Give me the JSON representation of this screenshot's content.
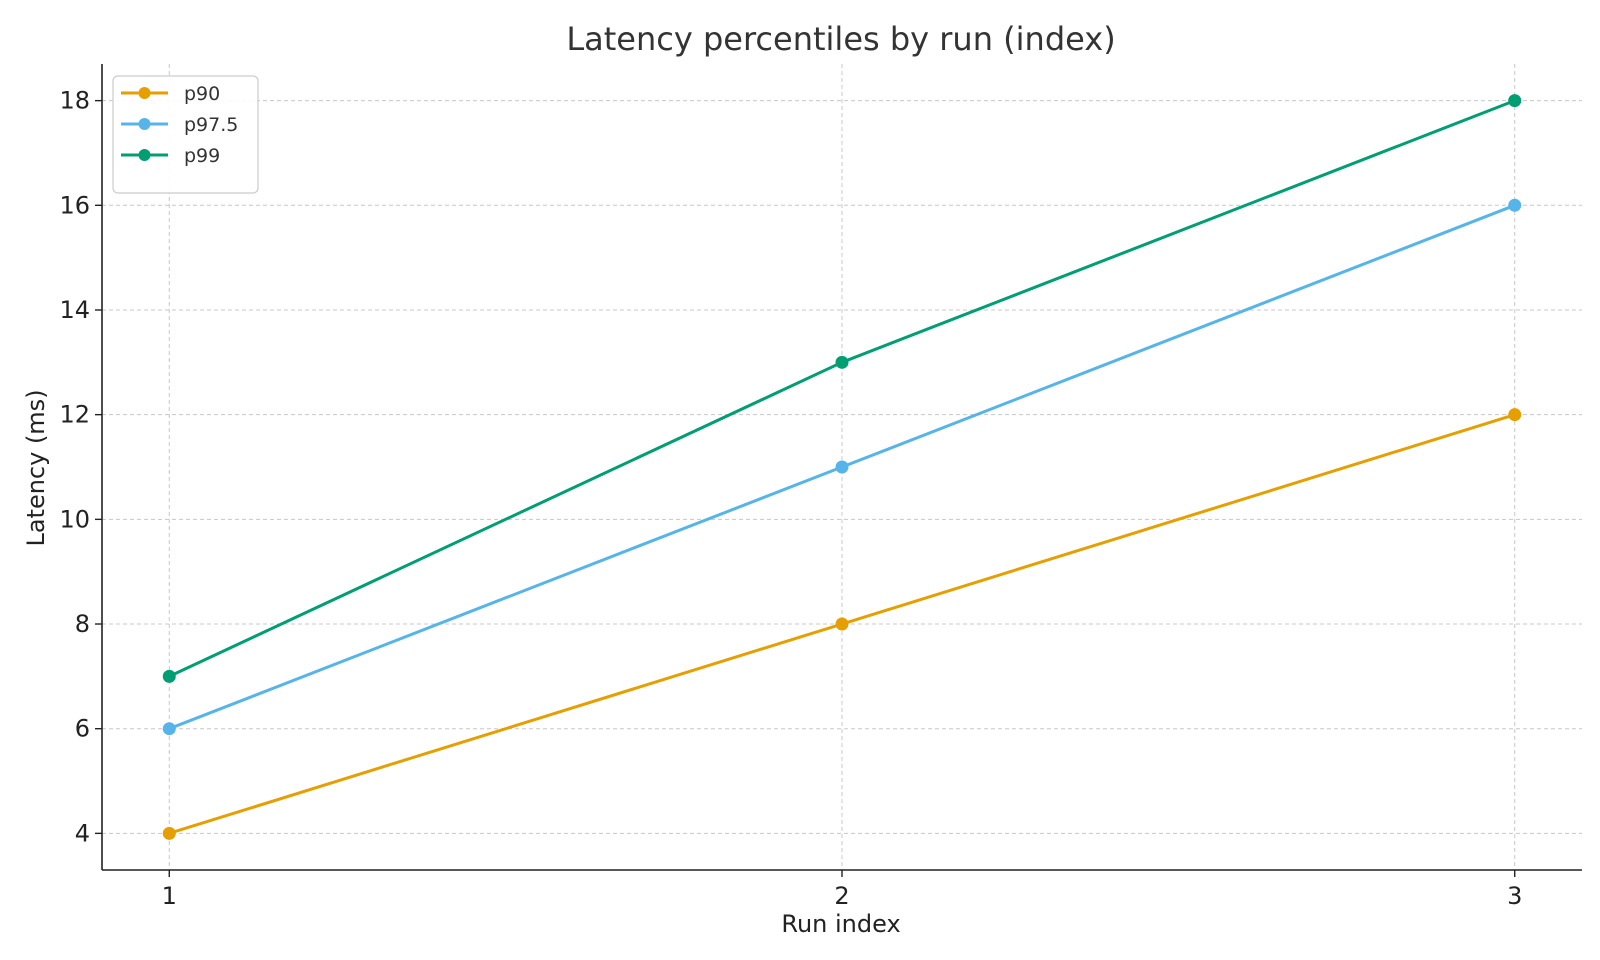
{
  "chart_data": {
    "type": "line",
    "title": "Latency percentiles by run (index)",
    "xlabel": "Run index",
    "ylabel": "Latency (ms)",
    "x": [
      1,
      2,
      3
    ],
    "xticks": [
      "1",
      "2",
      "3"
    ],
    "yticks": [
      4,
      6,
      8,
      10,
      12,
      14,
      16,
      18
    ],
    "xlim": [
      0.9,
      3.1
    ],
    "ylim": [
      3.3,
      18.7
    ],
    "grid": true,
    "legend_position": "top-left",
    "series": [
      {
        "name": "p90",
        "color": "#E69F00",
        "values": [
          4,
          8,
          12
        ]
      },
      {
        "name": "p97.5",
        "color": "#56B4E9",
        "values": [
          6,
          11,
          16
        ]
      },
      {
        "name": "p99",
        "color": "#009E73",
        "values": [
          7,
          13,
          18
        ]
      }
    ]
  }
}
